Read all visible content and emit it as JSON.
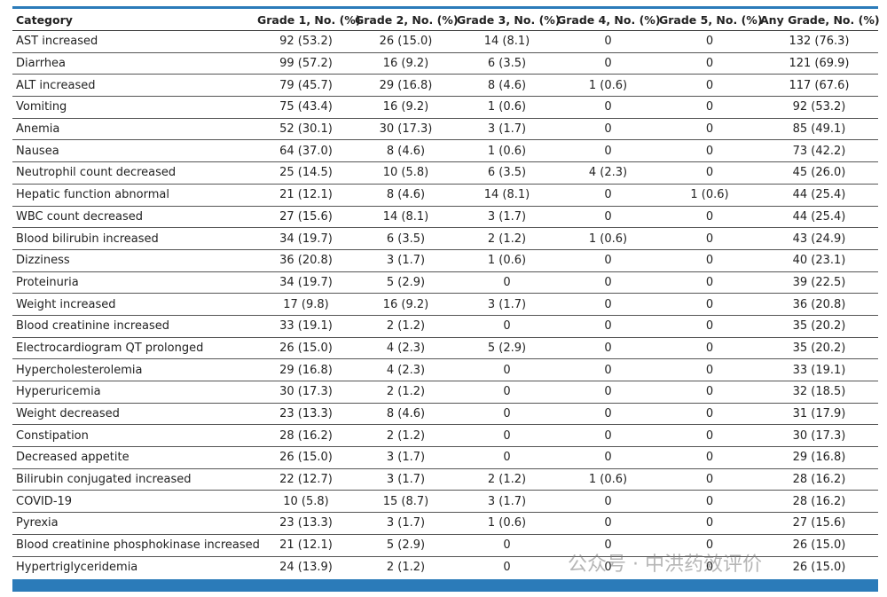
{
  "table": {
    "headers": [
      "Category",
      "Grade 1, No. (%)",
      "Grade 2, No. (%)",
      "Grade 3, No. (%)",
      "Grade 4, No. (%)",
      "Grade 5, No. (%)",
      "Any Grade, No. (%)"
    ],
    "rows": [
      [
        "AST increased",
        "92 (53.2)",
        "26 (15.0)",
        "14 (8.1)",
        "0",
        "0",
        "132 (76.3)"
      ],
      [
        "Diarrhea",
        "99 (57.2)",
        "16 (9.2)",
        "6 (3.5)",
        "0",
        "0",
        "121 (69.9)"
      ],
      [
        "ALT increased",
        "79 (45.7)",
        "29 (16.8)",
        "8 (4.6)",
        "1 (0.6)",
        "0",
        "117 (67.6)"
      ],
      [
        "Vomiting",
        "75 (43.4)",
        "16 (9.2)",
        "1 (0.6)",
        "0",
        "0",
        "92 (53.2)"
      ],
      [
        "Anemia",
        "52 (30.1)",
        "30 (17.3)",
        "3 (1.7)",
        "0",
        "0",
        "85 (49.1)"
      ],
      [
        "Nausea",
        "64 (37.0)",
        "8 (4.6)",
        "1 (0.6)",
        "0",
        "0",
        "73 (42.2)"
      ],
      [
        "Neutrophil count decreased",
        "25 (14.5)",
        "10 (5.8)",
        "6 (3.5)",
        "4 (2.3)",
        "0",
        "45 (26.0)"
      ],
      [
        "Hepatic function abnormal",
        "21 (12.1)",
        "8 (4.6)",
        "14 (8.1)",
        "0",
        "1 (0.6)",
        "44 (25.4)"
      ],
      [
        "WBC count decreased",
        "27 (15.6)",
        "14 (8.1)",
        "3 (1.7)",
        "0",
        "0",
        "44 (25.4)"
      ],
      [
        "Blood bilirubin increased",
        "34 (19.7)",
        "6 (3.5)",
        "2 (1.2)",
        "1 (0.6)",
        "0",
        "43 (24.9)"
      ],
      [
        "Dizziness",
        "36 (20.8)",
        "3 (1.7)",
        "1 (0.6)",
        "0",
        "0",
        "40 (23.1)"
      ],
      [
        "Proteinuria",
        "34 (19.7)",
        "5 (2.9)",
        "0",
        "0",
        "0",
        "39 (22.5)"
      ],
      [
        "Weight increased",
        "17 (9.8)",
        "16 (9.2)",
        "3 (1.7)",
        "0",
        "0",
        "36 (20.8)"
      ],
      [
        "Blood creatinine increased",
        "33 (19.1)",
        "2 (1.2)",
        "0",
        "0",
        "0",
        "35 (20.2)"
      ],
      [
        "Electrocardiogram QT prolonged",
        "26 (15.0)",
        "4 (2.3)",
        "5 (2.9)",
        "0",
        "0",
        "35 (20.2)"
      ],
      [
        "Hypercholesterolemia",
        "29 (16.8)",
        "4 (2.3)",
        "0",
        "0",
        "0",
        "33 (19.1)"
      ],
      [
        "Hyperuricemia",
        "30 (17.3)",
        "2 (1.2)",
        "0",
        "0",
        "0",
        "32 (18.5)"
      ],
      [
        "Weight decreased",
        "23 (13.3)",
        "8 (4.6)",
        "0",
        "0",
        "0",
        "31 (17.9)"
      ],
      [
        "Constipation",
        "28 (16.2)",
        "2 (1.2)",
        "0",
        "0",
        "0",
        "30 (17.3)"
      ],
      [
        "Decreased appetite",
        "26 (15.0)",
        "3 (1.7)",
        "0",
        "0",
        "0",
        "29 (16.8)"
      ],
      [
        "Bilirubin conjugated increased",
        "22 (12.7)",
        "3 (1.7)",
        "2 (1.2)",
        "1 (0.6)",
        "0",
        "28 (16.2)"
      ],
      [
        "COVID-19",
        "10 (5.8)",
        "15 (8.7)",
        "3 (1.7)",
        "0",
        "0",
        "28 (16.2)"
      ],
      [
        "Pyrexia",
        "23 (13.3)",
        "3 (1.7)",
        "1 (0.6)",
        "0",
        "0",
        "27 (15.6)"
      ],
      [
        "Blood creatinine phosphokinase increased",
        "21 (12.1)",
        "5 (2.9)",
        "0",
        "0",
        "0",
        "26 (15.0)"
      ],
      [
        "Hypertriglyceridemia",
        "24 (13.9)",
        "2 (1.2)",
        "0",
        "0",
        "0",
        "26 (15.0)"
      ]
    ]
  },
  "watermark": "公众号 · 中洪药效评价"
}
